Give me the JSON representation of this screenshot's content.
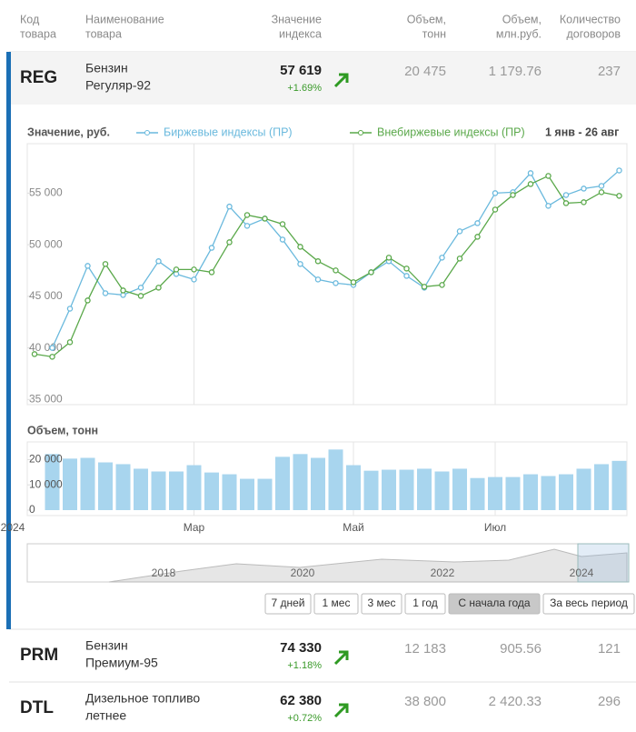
{
  "table": {
    "headers": [
      [
        "Код",
        "товара"
      ],
      [
        "Наименование",
        "товара"
      ],
      [
        "Значение",
        "индекса"
      ],
      [
        "Объем,",
        "тонн"
      ],
      [
        "Объем,",
        "млн.руб."
      ],
      [
        "Количество",
        "договоров"
      ]
    ],
    "rows": [
      {
        "code": "REG",
        "name": [
          "Бензин",
          "Регуляр-92"
        ],
        "value": "57 619",
        "change": "+1.69%",
        "volume": "20 475",
        "volume_rub": "1 179.76",
        "contracts": "237"
      },
      {
        "code": "PRM",
        "name": [
          "Бензин",
          "Премиум-95"
        ],
        "value": "74 330",
        "change": "+1.18%",
        "volume": "12 183",
        "volume_rub": "905.56",
        "contracts": "121"
      },
      {
        "code": "DTL",
        "name": [
          "Дизельное топливо",
          "летнее"
        ],
        "value": "62 380",
        "change": "+0.72%",
        "volume": "38 800",
        "volume_rub": "2 420.33",
        "contracts": "296"
      }
    ]
  },
  "chart_data": [
    {
      "type": "line",
      "title": "Значение, руб.",
      "date_range": "1 янв - 26 авг",
      "ylim": [
        34500,
        60500
      ],
      "yticks": [
        {
          "value": 35000,
          "label": "35 000"
        },
        {
          "value": 40000,
          "label": "40 000"
        },
        {
          "value": 45000,
          "label": "45 000"
        },
        {
          "value": 50000,
          "label": "50 000"
        },
        {
          "value": 55000,
          "label": "55 000"
        }
      ],
      "series": [
        {
          "name": "Биржевые индексы (ПР)",
          "color": "#6ab9dd",
          "values": [
            null,
            40000,
            43800,
            47950,
            45300,
            45130,
            45840,
            48400,
            47160,
            46630,
            49700,
            53700,
            51830,
            52530,
            50500,
            48130,
            46630,
            46280,
            46100,
            47330,
            48400,
            46980,
            45840,
            48750,
            51300,
            52090,
            55000,
            55090,
            56940,
            53770,
            54820,
            55440,
            55700,
            57200
          ]
        },
        {
          "name": "Внебиржевые индексы (ПР)",
          "color": "#5aa84a",
          "values": [
            39400,
            39140,
            40550,
            44600,
            48130,
            45570,
            45040,
            45840,
            47600,
            47600,
            47330,
            50240,
            52880,
            52530,
            52000,
            49800,
            48400,
            47510,
            46370,
            47330,
            48750,
            47690,
            45930,
            46100,
            48660,
            50770,
            53410,
            54820,
            55880,
            56670,
            54030,
            54120,
            55090,
            54740
          ]
        }
      ]
    },
    {
      "type": "bar",
      "title": "Объем, тонн",
      "color": "#a8d5ee",
      "ylim": [
        0,
        27000
      ],
      "yticks": [
        0,
        {
          "value": 10000,
          "label": "10 000"
        },
        {
          "value": 20000,
          "label": "20 000"
        }
      ],
      "categories": [
        "2024",
        null,
        null,
        null,
        null,
        null,
        null,
        null,
        null,
        "Мар",
        null,
        null,
        null,
        null,
        null,
        null,
        null,
        null,
        "Май",
        null,
        null,
        null,
        null,
        null,
        null,
        null,
        "Июл",
        null,
        null,
        null,
        null,
        null,
        null,
        null
      ],
      "values": [
        null,
        22200,
        20400,
        20700,
        18900,
        18200,
        16400,
        15300,
        15300,
        17800,
        14900,
        14200,
        12400,
        12400,
        21100,
        22200,
        20700,
        24000,
        17800,
        15600,
        16000,
        16000,
        16400,
        15300,
        16400,
        12700,
        13100,
        13100,
        14200,
        13500,
        14200,
        16400,
        18200,
        19500
      ]
    }
  ],
  "navigator": {
    "labels": [
      "2018",
      "2020",
      "2022",
      "2024"
    ]
  },
  "buttons": [
    "7 дней",
    "1 мес",
    "3 мес",
    "1 год",
    "С начала года",
    "За весь период"
  ]
}
